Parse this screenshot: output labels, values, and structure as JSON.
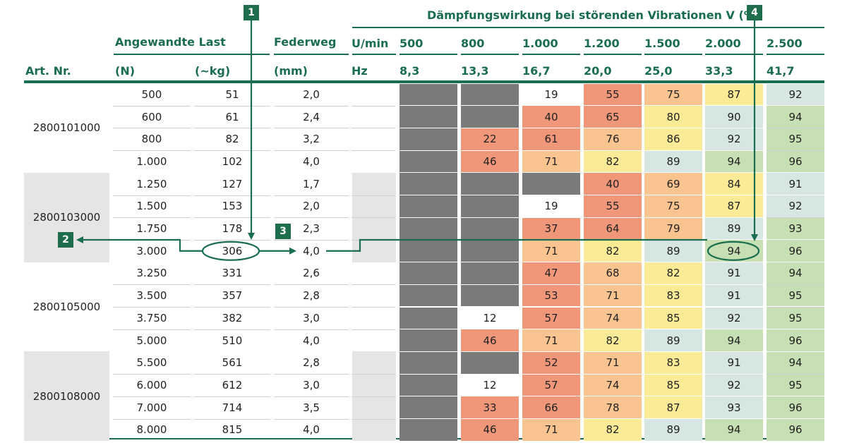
{
  "colors": {
    "accent": "#1a6d4f",
    "dark_gray": "#7a7a7a",
    "red": "#f0977a",
    "orange": "#f9c48f",
    "yellow": "#fbeb96",
    "light_blue": "#d5e6e3",
    "green": "#c6dfb3",
    "white": "#ffffff",
    "group_bg": "#e5e5e5"
  },
  "header": {
    "title": "Dämpfungswirkung bei störenden Vibrationen V (%)",
    "load_label": "Angewandte Last",
    "spring_label": "Federweg",
    "art_label": "Art. Nr.",
    "n_label": "(N)",
    "kg_label": "(~kg)",
    "mm_label": "(mm)",
    "rpm_label": "U/min",
    "hz_label": "Hz",
    "rpm_values": [
      "500",
      "800",
      "1.000",
      "1.200",
      "1.500",
      "2.000",
      "2.500"
    ],
    "hz_values": [
      "8,3",
      "13,3",
      "16,7",
      "20,0",
      "25,0",
      "33,3",
      "41,7"
    ]
  },
  "groups": [
    {
      "article": "2800101000",
      "rows": [
        {
          "n": "500",
          "kg": "51",
          "mm": "2,0",
          "v": [
            {
              "t": "",
              "c": "dark_gray"
            },
            {
              "t": "",
              "c": "dark_gray"
            },
            {
              "t": "19",
              "c": "white"
            },
            {
              "t": "55",
              "c": "red"
            },
            {
              "t": "75",
              "c": "orange"
            },
            {
              "t": "87",
              "c": "yellow"
            },
            {
              "t": "92",
              "c": "light_blue"
            }
          ]
        },
        {
          "n": "600",
          "kg": "61",
          "mm": "2,4",
          "v": [
            {
              "t": "",
              "c": "dark_gray"
            },
            {
              "t": "",
              "c": "dark_gray"
            },
            {
              "t": "40",
              "c": "red"
            },
            {
              "t": "65",
              "c": "red"
            },
            {
              "t": "80",
              "c": "yellow"
            },
            {
              "t": "90",
              "c": "light_blue"
            },
            {
              "t": "94",
              "c": "green"
            }
          ]
        },
        {
          "n": "800",
          "kg": "82",
          "mm": "3,2",
          "v": [
            {
              "t": "",
              "c": "dark_gray"
            },
            {
              "t": "22",
              "c": "red"
            },
            {
              "t": "61",
              "c": "red"
            },
            {
              "t": "76",
              "c": "orange"
            },
            {
              "t": "86",
              "c": "yellow"
            },
            {
              "t": "92",
              "c": "light_blue"
            },
            {
              "t": "95",
              "c": "green"
            }
          ]
        },
        {
          "n": "1.000",
          "kg": "102",
          "mm": "4,0",
          "v": [
            {
              "t": "",
              "c": "dark_gray"
            },
            {
              "t": "46",
              "c": "red"
            },
            {
              "t": "71",
              "c": "orange"
            },
            {
              "t": "82",
              "c": "yellow"
            },
            {
              "t": "89",
              "c": "light_blue"
            },
            {
              "t": "94",
              "c": "green"
            },
            {
              "t": "96",
              "c": "green"
            }
          ]
        }
      ]
    },
    {
      "article": "2800103000",
      "rows": [
        {
          "n": "1.250",
          "kg": "127",
          "mm": "1,7",
          "v": [
            {
              "t": "",
              "c": "dark_gray"
            },
            {
              "t": "",
              "c": "dark_gray"
            },
            {
              "t": "",
              "c": "dark_gray"
            },
            {
              "t": "40",
              "c": "red"
            },
            {
              "t": "69",
              "c": "orange"
            },
            {
              "t": "84",
              "c": "yellow"
            },
            {
              "t": "91",
              "c": "light_blue"
            }
          ]
        },
        {
          "n": "1.500",
          "kg": "153",
          "mm": "2,0",
          "v": [
            {
              "t": "",
              "c": "dark_gray"
            },
            {
              "t": "",
              "c": "dark_gray"
            },
            {
              "t": "19",
              "c": "white"
            },
            {
              "t": "55",
              "c": "red"
            },
            {
              "t": "75",
              "c": "orange"
            },
            {
              "t": "87",
              "c": "yellow"
            },
            {
              "t": "92",
              "c": "light_blue"
            }
          ]
        },
        {
          "n": "1.750",
          "kg": "178",
          "mm": "2,3",
          "v": [
            {
              "t": "",
              "c": "dark_gray"
            },
            {
              "t": "",
              "c": "dark_gray"
            },
            {
              "t": "37",
              "c": "red"
            },
            {
              "t": "64",
              "c": "red"
            },
            {
              "t": "79",
              "c": "orange"
            },
            {
              "t": "89",
              "c": "light_blue"
            },
            {
              "t": "93",
              "c": "green"
            }
          ]
        },
        {
          "n": "3.000",
          "kg": "306",
          "mm": "4,0",
          "v": [
            {
              "t": "",
              "c": "dark_gray"
            },
            {
              "t": "",
              "c": "dark_gray"
            },
            {
              "t": "71",
              "c": "orange"
            },
            {
              "t": "82",
              "c": "yellow"
            },
            {
              "t": "89",
              "c": "light_blue"
            },
            {
              "t": "94",
              "c": "green"
            },
            {
              "t": "96",
              "c": "green"
            }
          ]
        }
      ]
    },
    {
      "article": "2800105000",
      "rows": [
        {
          "n": "3.250",
          "kg": "331",
          "mm": "2,6",
          "v": [
            {
              "t": "",
              "c": "dark_gray"
            },
            {
              "t": "",
              "c": "dark_gray"
            },
            {
              "t": "47",
              "c": "red"
            },
            {
              "t": "68",
              "c": "orange"
            },
            {
              "t": "82",
              "c": "yellow"
            },
            {
              "t": "91",
              "c": "light_blue"
            },
            {
              "t": "94",
              "c": "green"
            }
          ]
        },
        {
          "n": "3.500",
          "kg": "357",
          "mm": "2,8",
          "v": [
            {
              "t": "",
              "c": "dark_gray"
            },
            {
              "t": "",
              "c": "dark_gray"
            },
            {
              "t": "53",
              "c": "red"
            },
            {
              "t": "71",
              "c": "orange"
            },
            {
              "t": "83",
              "c": "yellow"
            },
            {
              "t": "91",
              "c": "light_blue"
            },
            {
              "t": "95",
              "c": "green"
            }
          ]
        },
        {
          "n": "3.750",
          "kg": "382",
          "mm": "3,0",
          "v": [
            {
              "t": "",
              "c": "dark_gray"
            },
            {
              "t": "12",
              "c": "white"
            },
            {
              "t": "57",
              "c": "red"
            },
            {
              "t": "74",
              "c": "orange"
            },
            {
              "t": "85",
              "c": "yellow"
            },
            {
              "t": "92",
              "c": "light_blue"
            },
            {
              "t": "95",
              "c": "green"
            }
          ]
        },
        {
          "n": "5.000",
          "kg": "510",
          "mm": "4,0",
          "v": [
            {
              "t": "",
              "c": "dark_gray"
            },
            {
              "t": "46",
              "c": "red"
            },
            {
              "t": "71",
              "c": "orange"
            },
            {
              "t": "82",
              "c": "yellow"
            },
            {
              "t": "89",
              "c": "light_blue"
            },
            {
              "t": "94",
              "c": "green"
            },
            {
              "t": "96",
              "c": "green"
            }
          ]
        }
      ]
    },
    {
      "article": "2800108000",
      "rows": [
        {
          "n": "5.500",
          "kg": "561",
          "mm": "2,8",
          "v": [
            {
              "t": "",
              "c": "dark_gray"
            },
            {
              "t": "",
              "c": "dark_gray"
            },
            {
              "t": "52",
              "c": "red"
            },
            {
              "t": "71",
              "c": "orange"
            },
            {
              "t": "83",
              "c": "yellow"
            },
            {
              "t": "91",
              "c": "light_blue"
            },
            {
              "t": "94",
              "c": "green"
            }
          ]
        },
        {
          "n": "6.000",
          "kg": "612",
          "mm": "3,0",
          "v": [
            {
              "t": "",
              "c": "dark_gray"
            },
            {
              "t": "12",
              "c": "white"
            },
            {
              "t": "57",
              "c": "red"
            },
            {
              "t": "74",
              "c": "orange"
            },
            {
              "t": "85",
              "c": "yellow"
            },
            {
              "t": "92",
              "c": "light_blue"
            },
            {
              "t": "95",
              "c": "green"
            }
          ]
        },
        {
          "n": "7.000",
          "kg": "714",
          "mm": "3,5",
          "v": [
            {
              "t": "",
              "c": "dark_gray"
            },
            {
              "t": "33",
              "c": "red"
            },
            {
              "t": "66",
              "c": "red"
            },
            {
              "t": "78",
              "c": "orange"
            },
            {
              "t": "87",
              "c": "yellow"
            },
            {
              "t": "93",
              "c": "light_blue"
            },
            {
              "t": "96",
              "c": "green"
            }
          ]
        },
        {
          "n": "8.000",
          "kg": "815",
          "mm": "4,0",
          "v": [
            {
              "t": "",
              "c": "dark_gray"
            },
            {
              "t": "46",
              "c": "red"
            },
            {
              "t": "71",
              "c": "orange"
            },
            {
              "t": "82",
              "c": "yellow"
            },
            {
              "t": "89",
              "c": "light_blue"
            },
            {
              "t": "94",
              "c": "green"
            },
            {
              "t": "96",
              "c": "green"
            }
          ]
        }
      ]
    }
  ],
  "annotations": [
    {
      "num": "1",
      "icon": "callout-badge"
    },
    {
      "num": "2",
      "icon": "callout-badge"
    },
    {
      "num": "3",
      "icon": "callout-badge"
    },
    {
      "num": "4",
      "icon": "callout-badge"
    }
  ]
}
